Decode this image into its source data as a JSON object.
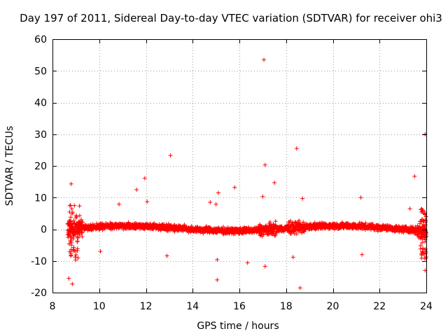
{
  "chart_data": {
    "type": "scatter",
    "title": "Day 197 of 2011, Sidereal Day-to-day VTEC variation (SDTVAR) for receiver ohi3",
    "xlabel": "GPS time / hours",
    "ylabel": "SDTVAR / TECUs",
    "xlim": [
      8,
      24
    ],
    "ylim": [
      -20,
      60
    ],
    "xticks": [
      8,
      10,
      12,
      14,
      16,
      18,
      20,
      22,
      24
    ],
    "yticks": [
      -20,
      -10,
      0,
      10,
      20,
      30,
      40,
      50,
      60
    ],
    "grid": true,
    "marker": "+",
    "color": "#ff0000",
    "outliers": [
      {
        "x": 17.05,
        "y": 53.5
      },
      {
        "x": 23.95,
        "y": 30.0
      },
      {
        "x": 18.45,
        "y": 25.5
      },
      {
        "x": 13.05,
        "y": 23.3
      },
      {
        "x": 17.1,
        "y": 20.3
      },
      {
        "x": 23.5,
        "y": 16.7
      },
      {
        "x": 11.95,
        "y": 16.1
      },
      {
        "x": 8.8,
        "y": 14.3
      },
      {
        "x": 15.8,
        "y": 13.2
      },
      {
        "x": 11.6,
        "y": 12.5
      },
      {
        "x": 17.5,
        "y": 14.7
      },
      {
        "x": 15.1,
        "y": 11.5
      },
      {
        "x": 17.0,
        "y": 10.3
      },
      {
        "x": 18.7,
        "y": 9.7
      },
      {
        "x": 12.05,
        "y": 8.7
      },
      {
        "x": 14.75,
        "y": 8.5
      },
      {
        "x": 10.85,
        "y": 7.9
      },
      {
        "x": 15.0,
        "y": 7.9
      },
      {
        "x": 21.2,
        "y": 10.0
      },
      {
        "x": 23.85,
        "y": 6.0
      },
      {
        "x": 23.3,
        "y": 6.5
      },
      {
        "x": 16.35,
        "y": -10.6
      },
      {
        "x": 17.1,
        "y": -11.7
      },
      {
        "x": 15.05,
        "y": -9.6
      },
      {
        "x": 10.05,
        "y": -7.0
      },
      {
        "x": 12.9,
        "y": -8.4
      },
      {
        "x": 8.7,
        "y": -15.5
      },
      {
        "x": 8.85,
        "y": -17.3
      },
      {
        "x": 15.05,
        "y": -16.0
      },
      {
        "x": 18.6,
        "y": -18.5
      },
      {
        "x": 23.95,
        "y": -13.0
      },
      {
        "x": 21.25,
        "y": -8.0
      },
      {
        "x": 18.3,
        "y": -8.8
      }
    ]
  }
}
